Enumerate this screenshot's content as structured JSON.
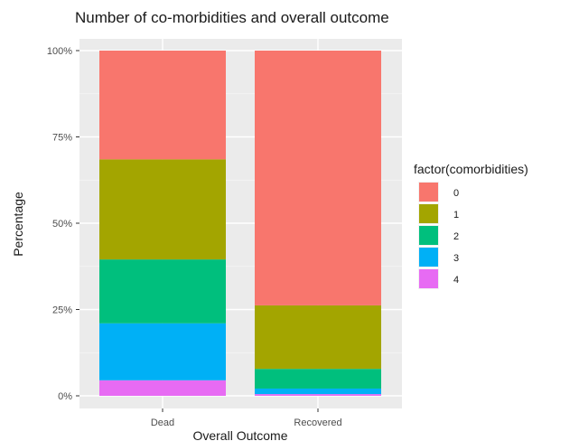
{
  "chart_data": {
    "type": "bar",
    "stacked": true,
    "normalized": true,
    "title": "Number of co-morbidities and overall outcome",
    "xlabel": "Overall Outcome",
    "ylabel": "Percentage",
    "categories": [
      "Dead",
      "Recovered"
    ],
    "y_ticks": [
      0,
      25,
      50,
      75,
      100
    ],
    "y_tick_labels": [
      "0%",
      "25%",
      "50%",
      "75%",
      "100%"
    ],
    "ylim": [
      0,
      100
    ],
    "grid": true,
    "legend": {
      "title": "factor(comorbidities)",
      "position": "right"
    },
    "series": [
      {
        "name": "0",
        "color": "#F8766D",
        "values": [
          31.5,
          73.8
        ]
      },
      {
        "name": "1",
        "color": "#A3A500",
        "values": [
          29.0,
          18.4
        ]
      },
      {
        "name": "2",
        "color": "#00BF7D",
        "values": [
          18.5,
          5.7
        ]
      },
      {
        "name": "3",
        "color": "#00B0F6",
        "values": [
          16.5,
          1.6
        ]
      },
      {
        "name": "4",
        "color": "#E76BF3",
        "values": [
          4.5,
          0.5
        ]
      }
    ]
  }
}
